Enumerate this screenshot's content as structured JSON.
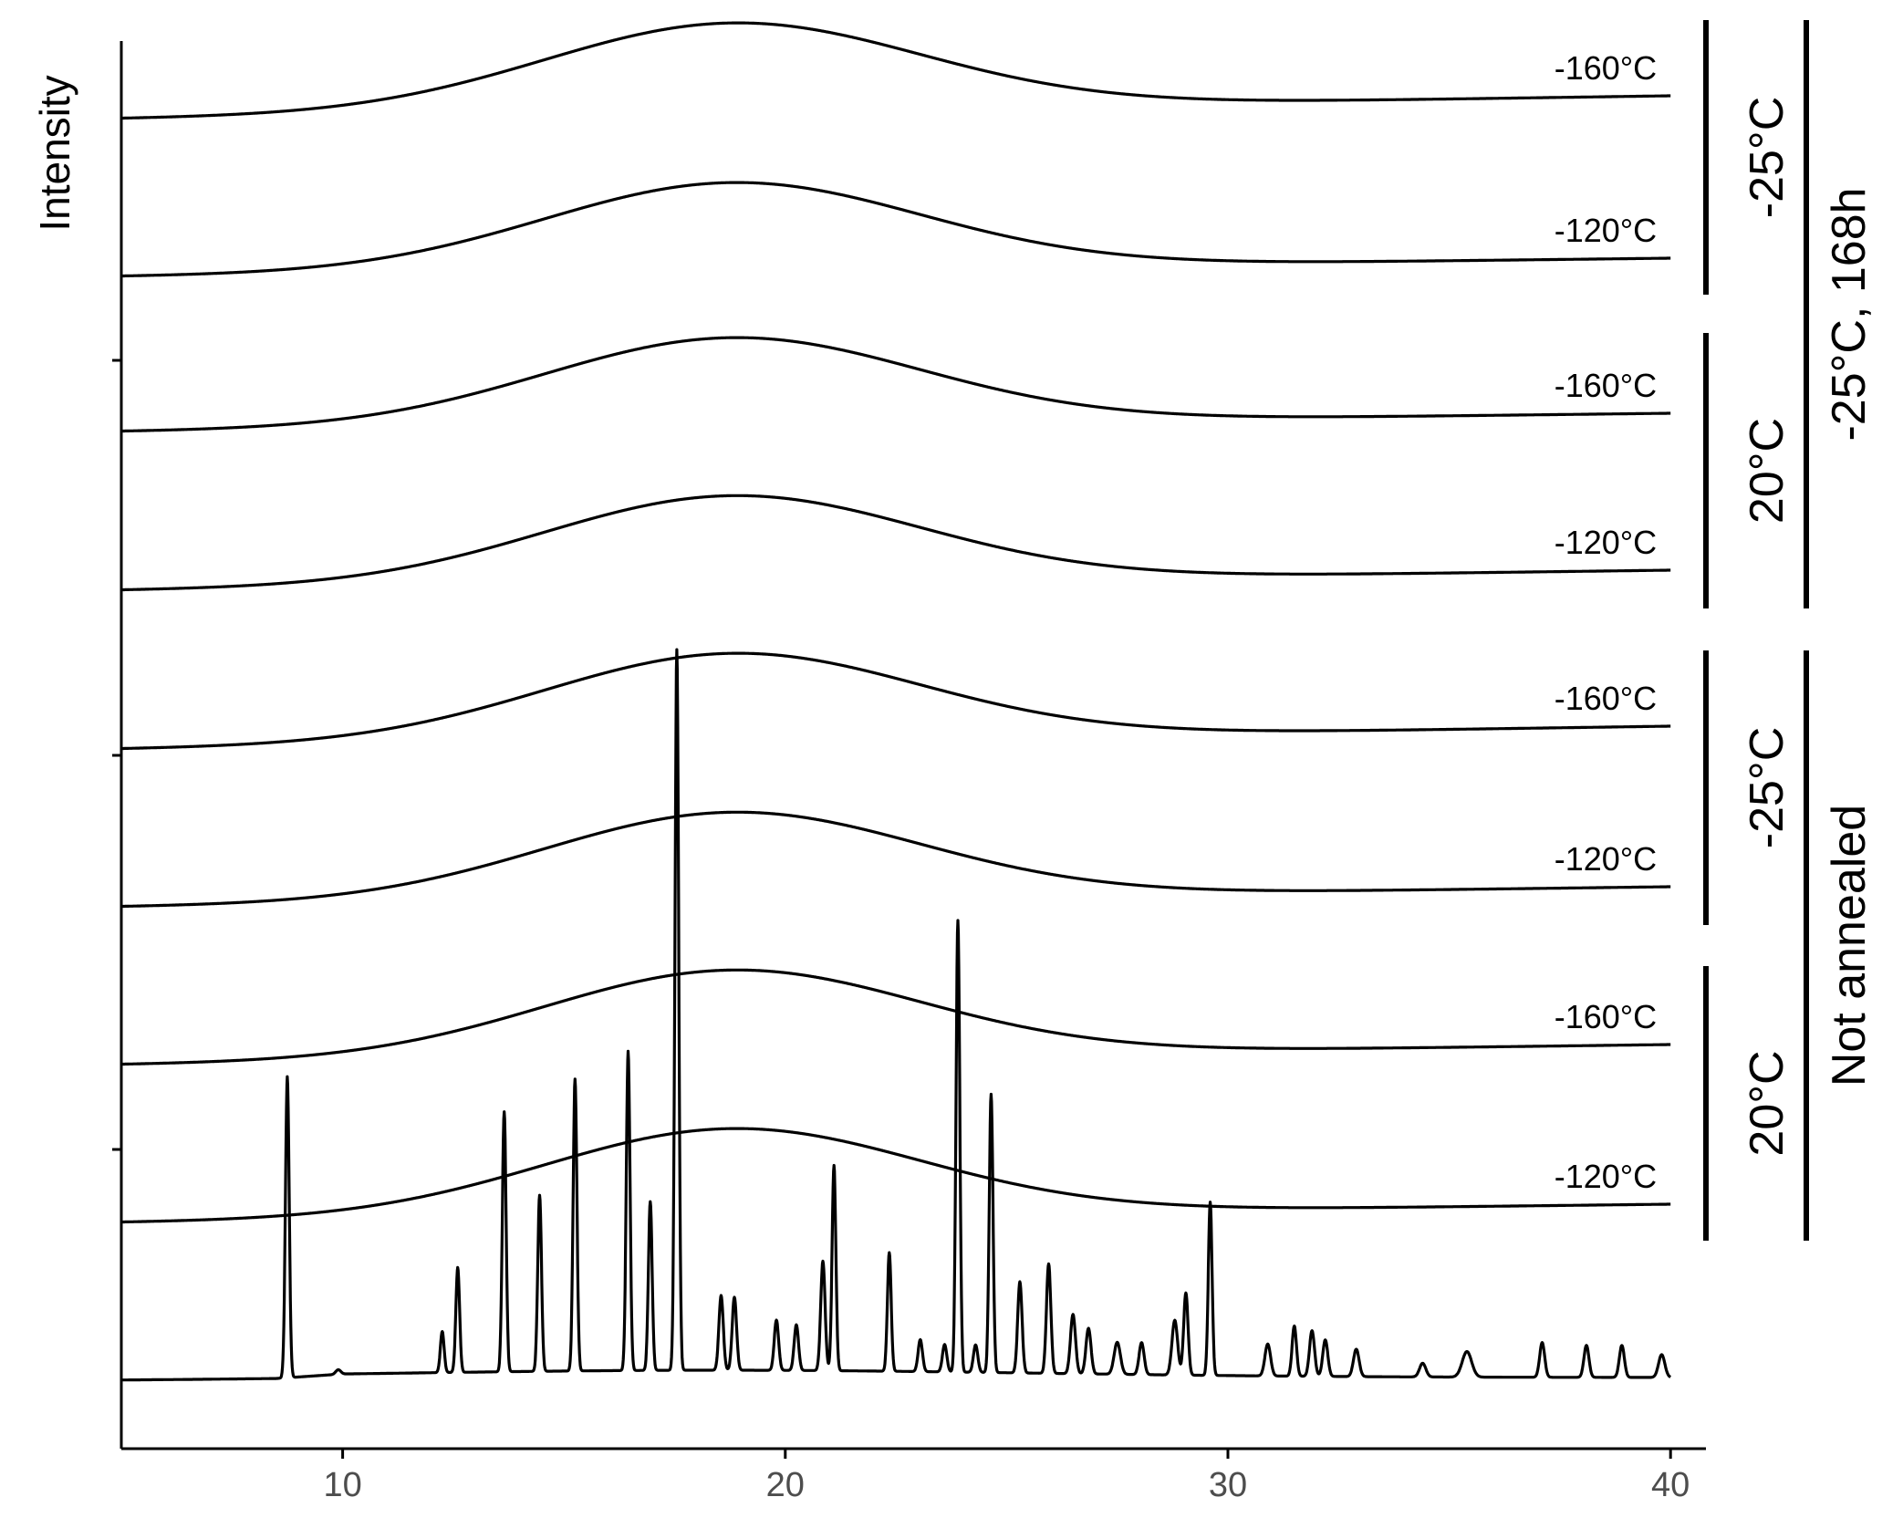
{
  "chart_data": {
    "type": "line",
    "title": "",
    "xlabel": "",
    "ylabel": "Intensity",
    "xlim": [
      5,
      40.8
    ],
    "x_ticks": [
      10,
      20,
      30,
      40
    ],
    "grid": false,
    "legend": "none",
    "series": [
      {
        "label": "-160°C",
        "group": "-25°C",
        "outer_group": "-25°C, 168h",
        "shape": "amorphous",
        "halo": [
          18.8,
          6.0
        ],
        "rise": 25
      },
      {
        "label": "-120°C",
        "group": "-25°C",
        "outer_group": "-25°C, 168h",
        "shape": "amorphous",
        "halo": [
          18.8,
          6.0
        ],
        "rise": 20
      },
      {
        "label": "-160°C",
        "group": "20°C",
        "outer_group": "-25°C, 168h",
        "shape": "amorphous",
        "halo": [
          18.8,
          6.0
        ],
        "rise": 20
      },
      {
        "label": "-120°C",
        "group": "20°C",
        "outer_group": "-25°C, 168h",
        "shape": "amorphous",
        "halo": [
          18.8,
          6.0
        ],
        "rise": 22
      },
      {
        "label": "-160°C",
        "group": "-25°C",
        "outer_group": "Not annealed",
        "shape": "amorphous",
        "halo": [
          18.8,
          6.0
        ],
        "rise": 25
      },
      {
        "label": "-120°C",
        "group": "-25°C",
        "outer_group": "Not annealed",
        "shape": "amorphous",
        "halo": [
          18.8,
          6.0
        ],
        "rise": 22
      },
      {
        "label": "-160°C",
        "group": "20°C",
        "outer_group": "Not annealed",
        "shape": "amorphous",
        "halo": [
          18.8,
          6.0
        ],
        "rise": 22
      },
      {
        "label": "-120°C",
        "group": "20°C",
        "outer_group": "Not annealed",
        "shape": "amorphous",
        "halo": [
          18.8,
          6.0
        ],
        "rise": 20
      },
      {
        "label": "",
        "shape": "crystalline",
        "peaks": [
          [
            8.75,
            330,
            0.06
          ],
          [
            9.9,
            5,
            0.08
          ],
          [
            12.25,
            45,
            0.06
          ],
          [
            12.6,
            115,
            0.06
          ],
          [
            13.65,
            285,
            0.06
          ],
          [
            14.45,
            193,
            0.06
          ],
          [
            15.25,
            320,
            0.06
          ],
          [
            16.45,
            350,
            0.06
          ],
          [
            16.95,
            185,
            0.06
          ],
          [
            17.55,
            790,
            0.06
          ],
          [
            18.55,
            82,
            0.07
          ],
          [
            18.85,
            80,
            0.07
          ],
          [
            19.8,
            55,
            0.07
          ],
          [
            20.25,
            50,
            0.07
          ],
          [
            20.85,
            120,
            0.07
          ],
          [
            21.1,
            225,
            0.06
          ],
          [
            22.35,
            130,
            0.06
          ],
          [
            23.05,
            35,
            0.07
          ],
          [
            23.6,
            30,
            0.07
          ],
          [
            23.9,
            495,
            0.06
          ],
          [
            24.3,
            30,
            0.07
          ],
          [
            24.65,
            305,
            0.06
          ],
          [
            25.3,
            100,
            0.07
          ],
          [
            25.95,
            120,
            0.07
          ],
          [
            26.5,
            65,
            0.08
          ],
          [
            26.85,
            50,
            0.08
          ],
          [
            27.5,
            35,
            0.1
          ],
          [
            28.05,
            35,
            0.08
          ],
          [
            28.8,
            60,
            0.09
          ],
          [
            29.05,
            90,
            0.07
          ],
          [
            29.6,
            190,
            0.06
          ],
          [
            30.9,
            35,
            0.09
          ],
          [
            31.5,
            55,
            0.07
          ],
          [
            31.9,
            50,
            0.08
          ],
          [
            32.2,
            40,
            0.08
          ],
          [
            32.9,
            30,
            0.09
          ],
          [
            34.4,
            15,
            0.1
          ],
          [
            35.4,
            28,
            0.15
          ],
          [
            37.1,
            38,
            0.08
          ],
          [
            38.1,
            35,
            0.08
          ],
          [
            38.9,
            35,
            0.08
          ],
          [
            39.8,
            25,
            0.1
          ]
        ]
      }
    ]
  }
}
